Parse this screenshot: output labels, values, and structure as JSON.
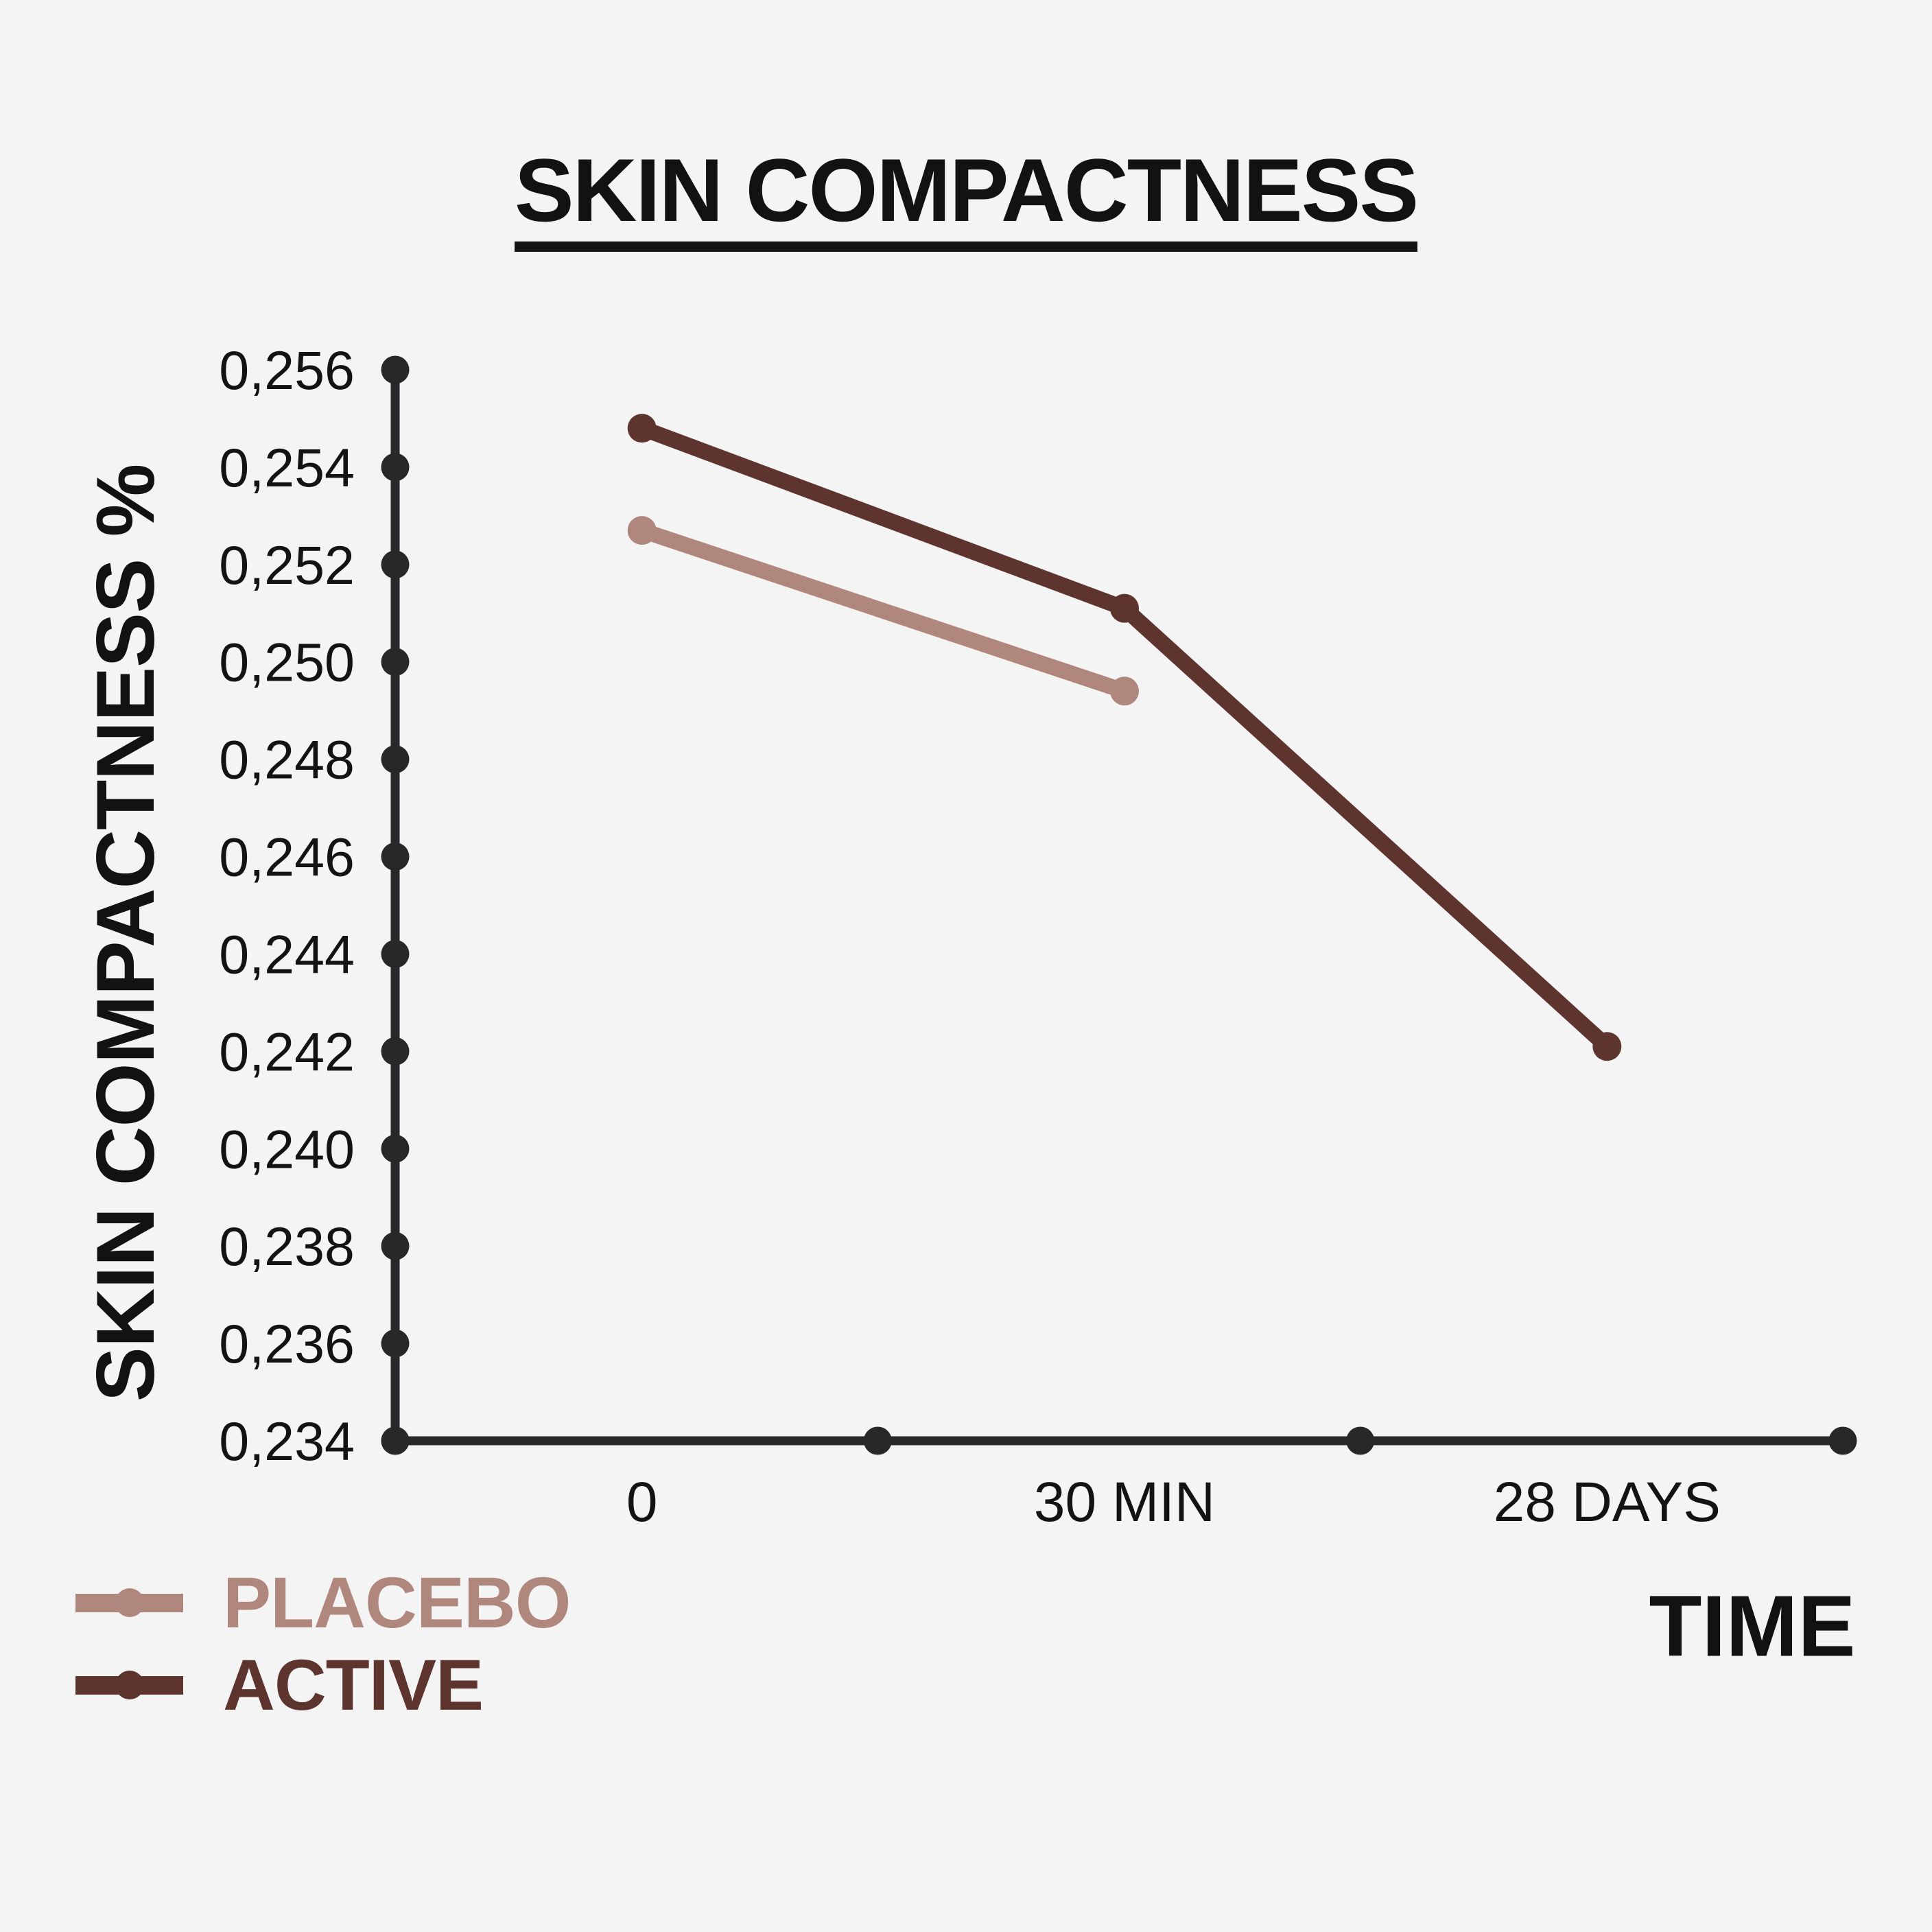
{
  "chart_data": {
    "type": "line",
    "title": "SKIN COMPACTNESS",
    "categories": [
      "0",
      "30 MIN",
      "28 DAYS"
    ],
    "xlabel": "TIME",
    "ylabel": "SKIN COMPACTNESS %",
    "ylim": [
      0.234,
      0.256
    ],
    "y_tick_step": 0.002,
    "y_tick_labels": [
      "0,256",
      "0,254",
      "0,252",
      "0,250",
      "0,248",
      "0,246",
      "0,244",
      "0,242",
      "0,240",
      "0,238",
      "0,236",
      "0,234"
    ],
    "decimal_separator": ",",
    "grid": false,
    "legend_position": "bottom-left",
    "series": [
      {
        "name": "PLACEBO",
        "color": "#b0877c",
        "values": [
          0.2527,
          0.2494,
          null
        ]
      },
      {
        "name": "ACTIVE",
        "color": "#5e352e",
        "values": [
          0.2548,
          0.2511,
          0.2421
        ]
      }
    ]
  },
  "colors": {
    "background": "#f5f4f5",
    "axis": "#28282a",
    "text": "#131313"
  }
}
